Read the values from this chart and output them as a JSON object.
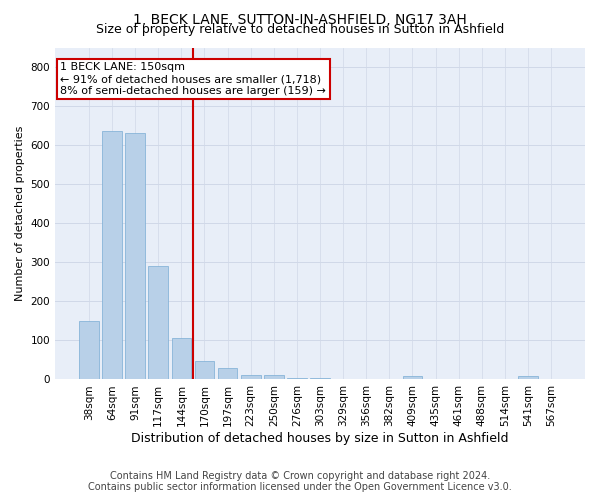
{
  "title": "1, BECK LANE, SUTTON-IN-ASHFIELD, NG17 3AH",
  "subtitle": "Size of property relative to detached houses in Sutton in Ashfield",
  "xlabel": "Distribution of detached houses by size in Sutton in Ashfield",
  "ylabel": "Number of detached properties",
  "categories": [
    "38sqm",
    "64sqm",
    "91sqm",
    "117sqm",
    "144sqm",
    "170sqm",
    "197sqm",
    "223sqm",
    "250sqm",
    "276sqm",
    "303sqm",
    "329sqm",
    "356sqm",
    "382sqm",
    "409sqm",
    "435sqm",
    "461sqm",
    "488sqm",
    "514sqm",
    "541sqm",
    "567sqm"
  ],
  "values": [
    150,
    635,
    630,
    290,
    105,
    47,
    30,
    12,
    12,
    5,
    5,
    0,
    0,
    0,
    8,
    0,
    0,
    0,
    0,
    8,
    0
  ],
  "bar_color": "#b8d0e8",
  "bar_edge_color": "#7aadd4",
  "vline_x_index": 4.5,
  "vline_color": "#cc0000",
  "annotation_line1": "1 BECK LANE: 150sqm",
  "annotation_line2": "← 91% of detached houses are smaller (1,718)",
  "annotation_line3": "8% of semi-detached houses are larger (159) →",
  "annotation_box_color": "#cc0000",
  "ylim": [
    0,
    850
  ],
  "yticks": [
    0,
    100,
    200,
    300,
    400,
    500,
    600,
    700,
    800
  ],
  "grid_color": "#d0d8e8",
  "bg_color": "#e8eef8",
  "footer_line1": "Contains HM Land Registry data © Crown copyright and database right 2024.",
  "footer_line2": "Contains public sector information licensed under the Open Government Licence v3.0.",
  "title_fontsize": 10,
  "subtitle_fontsize": 9,
  "xlabel_fontsize": 9,
  "ylabel_fontsize": 8,
  "tick_fontsize": 7.5,
  "annotation_fontsize": 8,
  "footer_fontsize": 7
}
